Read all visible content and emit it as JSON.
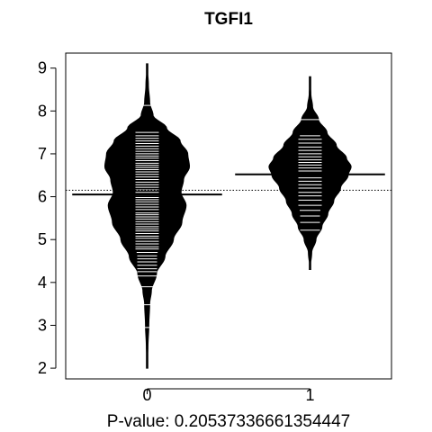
{
  "chart_data": {
    "type": "beanplot",
    "title": "TGFI1",
    "xlabel": "P-value: 0.20537336661354447",
    "ylabel": "",
    "categories": [
      "0",
      "1"
    ],
    "yticks": [
      2,
      3,
      4,
      5,
      6,
      7,
      8,
      9
    ],
    "ylim": [
      1.75,
      9.35
    ],
    "overall_mean": 6.15,
    "groups": [
      {
        "name": "0",
        "mean": 6.05,
        "range": [
          2.0,
          9.1
        ],
        "density_profile": [
          [
            2.0,
            0.0
          ],
          [
            2.5,
            0.02
          ],
          [
            3.0,
            0.04
          ],
          [
            3.5,
            0.06
          ],
          [
            3.8,
            0.1
          ],
          [
            4.2,
            0.22
          ],
          [
            4.6,
            0.42
          ],
          [
            5.0,
            0.62
          ],
          [
            5.4,
            0.82
          ],
          [
            5.8,
            0.92
          ],
          [
            6.1,
            0.8
          ],
          [
            6.4,
            0.86
          ],
          [
            6.7,
            1.0
          ],
          [
            7.0,
            0.96
          ],
          [
            7.3,
            0.78
          ],
          [
            7.6,
            0.46
          ],
          [
            7.9,
            0.14
          ],
          [
            8.2,
            0.06
          ],
          [
            8.6,
            0.03
          ],
          [
            9.1,
            0.0
          ]
        ],
        "observations": [
          2.95,
          3.48,
          3.9,
          4.15,
          4.25,
          4.32,
          4.4,
          4.48,
          4.55,
          4.62,
          4.7,
          4.78,
          4.83,
          4.9,
          4.96,
          5.03,
          5.08,
          5.14,
          5.2,
          5.25,
          5.3,
          5.36,
          5.42,
          5.48,
          5.53,
          5.58,
          5.62,
          5.7,
          5.76,
          5.82,
          5.88,
          5.93,
          5.98,
          6.04,
          6.1,
          6.16,
          6.22,
          6.28,
          6.34,
          6.4,
          6.46,
          6.52,
          6.58,
          6.63,
          6.68,
          6.73,
          6.78,
          6.84,
          6.9,
          6.95,
          7.0,
          7.06,
          7.12,
          7.18,
          7.24,
          7.3,
          7.36,
          7.42,
          7.5,
          8.13
        ]
      },
      {
        "name": "1",
        "mean": 6.52,
        "range": [
          4.3,
          8.8
        ],
        "density_profile": [
          [
            4.3,
            0.0
          ],
          [
            4.7,
            0.04
          ],
          [
            5.0,
            0.14
          ],
          [
            5.3,
            0.28
          ],
          [
            5.6,
            0.42
          ],
          [
            5.9,
            0.56
          ],
          [
            6.2,
            0.72
          ],
          [
            6.5,
            0.9
          ],
          [
            6.7,
            0.97
          ],
          [
            6.9,
            0.86
          ],
          [
            7.2,
            0.62
          ],
          [
            7.5,
            0.4
          ],
          [
            7.8,
            0.2
          ],
          [
            8.1,
            0.06
          ],
          [
            8.4,
            0.02
          ],
          [
            8.8,
            0.0
          ]
        ],
        "observations": [
          5.22,
          5.4,
          5.55,
          5.68,
          5.8,
          5.92,
          6.02,
          6.1,
          6.2,
          6.28,
          6.36,
          6.44,
          6.52,
          6.6,
          6.67,
          6.74,
          6.8,
          6.86,
          6.93,
          7.0,
          7.08,
          7.16,
          7.25,
          7.34,
          7.42,
          7.8
        ]
      }
    ]
  }
}
